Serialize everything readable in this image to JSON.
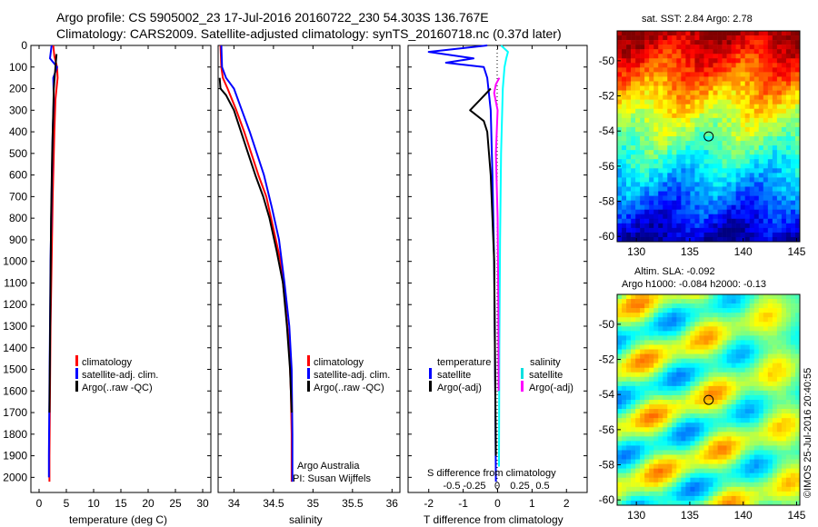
{
  "header": {
    "line1": "Argo profile: CS 5905002_23 17-Jul-2016 20160722_230 54.303S 136.767E",
    "line2": "Climatology: CARS2009. Satellite-adjusted climatology: synTS_20160718.nc (0.37d later)"
  },
  "footer": {
    "credit": "©IMOS 25-Jul-2016 20:40:55"
  },
  "chart_data": [
    {
      "id": "temperature",
      "type": "line",
      "xlabel": "temperature (deg C)",
      "ylabel": "",
      "xlim": [
        -1.5,
        31.5
      ],
      "ylim": [
        2070,
        0
      ],
      "x_ticks": [
        "0",
        "5",
        "10",
        "15",
        "20",
        "25",
        "30"
      ],
      "x_tick_values": [
        0,
        5,
        10,
        15,
        20,
        25,
        30
      ],
      "y_ticks": [
        "0",
        "100",
        "200",
        "300",
        "400",
        "500",
        "600",
        "700",
        "800",
        "900",
        "1000",
        "1100",
        "1200",
        "1300",
        "1400",
        "1500",
        "1600",
        "1700",
        "1800",
        "1900",
        "2000"
      ],
      "y_tick_values": [
        0,
        100,
        200,
        300,
        400,
        500,
        600,
        700,
        800,
        900,
        1000,
        1100,
        1200,
        1300,
        1400,
        1500,
        1600,
        1700,
        1800,
        1900,
        2000
      ],
      "legend": [
        "climatology",
        "satellite-adj. clim.",
        "Argo(..raw -QC)"
      ],
      "legend_colors": [
        "#ff0000",
        "#0000ff",
        "#000000"
      ],
      "series": [
        {
          "name": "climatology",
          "color": "#ff0000",
          "x": [
            2.6,
            2.8,
            3.3,
            3.4,
            3.0,
            2.8,
            2.5,
            2.3,
            2.1,
            2.0,
            1.9,
            1.9
          ],
          "y": [
            0,
            50,
            100,
            150,
            250,
            400,
            700,
            1000,
            1300,
            1600,
            1900,
            2020
          ]
        },
        {
          "name": "satellite-adj. clim.",
          "color": "#0000ff",
          "x": [
            2.3,
            2.0,
            3.3,
            2.6,
            2.7,
            2.5,
            2.3,
            2.1,
            2.0,
            1.9,
            1.8,
            1.8
          ],
          "y": [
            0,
            60,
            100,
            150,
            250,
            400,
            700,
            1000,
            1300,
            1600,
            1900,
            2000
          ]
        },
        {
          "name": "Argo(..raw -QC)",
          "color": "#000000",
          "x": [
            3.2,
            3.0,
            2.7,
            2.6,
            2.5,
            2.4,
            2.2,
            2.1,
            2.0,
            1.9
          ],
          "y": [
            40,
            100,
            200,
            300,
            400,
            500,
            800,
            1100,
            1400,
            1700
          ]
        }
      ]
    },
    {
      "id": "salinity",
      "type": "line",
      "xlabel": "salinity",
      "ylabel": "",
      "xlim": [
        33.8,
        36.1
      ],
      "ylim": [
        2070,
        0
      ],
      "x_ticks": [
        "34",
        "34.5",
        "35",
        "35.5",
        "36"
      ],
      "x_tick_values": [
        34,
        34.5,
        35,
        35.5,
        36
      ],
      "legend": [
        "climatology",
        "satellite-adj. clim.",
        "Argo(..raw -QC)"
      ],
      "legend_colors": [
        "#ff0000",
        "#0000ff",
        "#000000"
      ],
      "series": [
        {
          "name": "climatology",
          "color": "#ff0000",
          "x": [
            33.83,
            33.84,
            33.86,
            33.92,
            34.03,
            34.13,
            34.22,
            34.31,
            34.41,
            34.5,
            34.59,
            34.65,
            34.7,
            34.72,
            34.73,
            34.73
          ],
          "y": [
            0,
            100,
            150,
            200,
            300,
            400,
            500,
            600,
            700,
            850,
            1000,
            1200,
            1400,
            1600,
            1800,
            2020
          ]
        },
        {
          "name": "satellite-adj. clim.",
          "color": "#0000ff",
          "x": [
            33.84,
            33.85,
            33.9,
            34.0,
            34.1,
            34.2,
            34.29,
            34.38,
            34.48,
            34.57,
            34.64,
            34.7,
            34.73,
            34.74,
            34.74
          ],
          "y": [
            0,
            100,
            150,
            200,
            300,
            400,
            500,
            600,
            750,
            900,
            1100,
            1300,
            1500,
            1800,
            2020
          ]
        },
        {
          "name": "Argo(..raw -QC)",
          "color": "#000000",
          "x": [
            33.82,
            33.83,
            33.9,
            34.0,
            34.09,
            34.18,
            34.27,
            34.37,
            34.45,
            34.54,
            34.62,
            34.67,
            34.71,
            34.73
          ],
          "y": [
            150,
            200,
            230,
            300,
            400,
            500,
            600,
            700,
            800,
            950,
            1100,
            1300,
            1500,
            1700
          ]
        }
      ],
      "annotation": [
        "Argo Australia",
        "PI: Susan Wijffels"
      ]
    },
    {
      "id": "difference",
      "type": "line",
      "xlabel": "T difference from climatology",
      "xlabel_top": "S difference from climatology",
      "xlim": [
        -2.6,
        2.6
      ],
      "ylim": [
        2070,
        0
      ],
      "x_ticks": [
        "-2",
        "-1",
        "0",
        "1",
        "2"
      ],
      "x_tick_values": [
        -2,
        -1,
        0,
        1,
        2
      ],
      "s_ticks": [
        "-0.5",
        "-0.25",
        "0",
        "0.25",
        "0.5"
      ],
      "legend_titles": [
        "temperature",
        "salinity"
      ],
      "legend": [
        "satellite",
        "Argo(-adj)",
        "satellite",
        "Argo(-adj)"
      ],
      "legend_colors": [
        "#0000ff",
        "#000000",
        "#00ffff",
        "#ff00ff"
      ],
      "series": [
        {
          "name": "T satellite",
          "color": "#0000ff",
          "x": [
            -0.3,
            -2.0,
            -0.7,
            -1.5,
            -0.4,
            -0.3,
            -0.2,
            -0.15,
            -0.1,
            -0.08,
            -0.06,
            -0.05
          ],
          "y": [
            0,
            30,
            60,
            80,
            100,
            150,
            300,
            600,
            1000,
            1400,
            1800,
            2020
          ]
        },
        {
          "name": "T Argo(-adj)",
          "color": "#000000",
          "x": [
            -0.2,
            -0.5,
            -0.8,
            -0.4,
            -0.3,
            -0.2,
            -0.1,
            -0.05
          ],
          "y": [
            200,
            250,
            300,
            350,
            400,
            600,
            1000,
            1900
          ]
        },
        {
          "name": "S satellite",
          "color": "#00ffff",
          "x": [
            0.1,
            0.3,
            0.25,
            0.2,
            0.15,
            0.1,
            0.07,
            0.05,
            0.04
          ],
          "y": [
            0,
            30,
            60,
            100,
            200,
            500,
            900,
            1400,
            1950
          ]
        },
        {
          "name": "S Argo(-adj)",
          "color": "#ff00ff",
          "x": [
            0.05,
            -0.05,
            -0.1,
            0,
            -0.05,
            0,
            0.02,
            0.03
          ],
          "y": [
            150,
            180,
            220,
            300,
            500,
            800,
            1200,
            1600
          ]
        }
      ]
    }
  ],
  "maps": [
    {
      "id": "sst-map",
      "title": "sat. SST: 2.84  Argo: 2.78",
      "x_ticks": [
        "130",
        "135",
        "140",
        "145"
      ],
      "x_tick_values": [
        130,
        135,
        140,
        145
      ],
      "y_ticks": [
        "-50",
        "-52",
        "-54",
        "-56",
        "-58",
        "-60"
      ],
      "y_tick_values": [
        -50,
        -52,
        -54,
        -56,
        -58,
        -60
      ],
      "xlim": [
        128.2,
        145.3
      ],
      "ylim": [
        -60.3,
        -48.3
      ],
      "marker": [
        136.767,
        -54.303
      ]
    },
    {
      "id": "sla-map",
      "title_line1": "Altim. SLA: -0.092",
      "title_line2": "Argo h1000: -0.084  h2000: -0.13",
      "x_ticks": [
        "130",
        "135",
        "140",
        "145"
      ],
      "x_tick_values": [
        130,
        135,
        140,
        145
      ],
      "y_ticks": [
        "-50",
        "-52",
        "-54",
        "-56",
        "-58",
        "-60"
      ],
      "y_tick_values": [
        -50,
        -52,
        -54,
        -56,
        -58,
        -60
      ],
      "xlim": [
        128.2,
        145.3
      ],
      "ylim": [
        -60.3,
        -48.3
      ],
      "marker": [
        136.767,
        -54.303
      ]
    }
  ]
}
